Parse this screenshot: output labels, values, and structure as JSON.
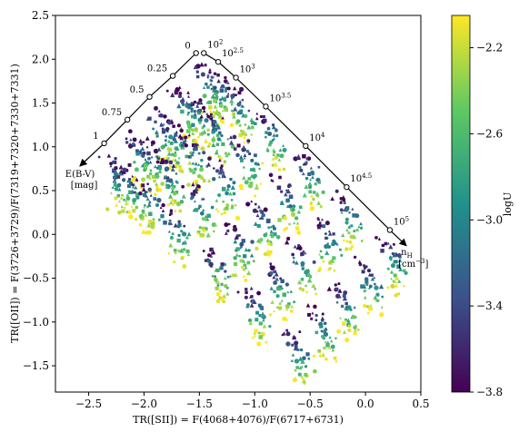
{
  "chart_data": {
    "type": "scatter",
    "title": "",
    "xlabel": "TR([SII]) = F(4068+4076)/F(6717+6731)",
    "ylabel": "TR([OII]) = F(3726+3729)/F(7319+7320+7330+7331)",
    "xlim": [
      -2.8,
      0.5
    ],
    "ylim": [
      -1.8,
      2.5
    ],
    "xticks": [
      "−2.5",
      "−2.0",
      "−1.5",
      "−1.0",
      "−0.5",
      "0.0",
      "0.5"
    ],
    "xtick_values": [
      -2.5,
      -2.0,
      -1.5,
      -1.0,
      -0.5,
      0.0,
      0.5
    ],
    "yticks": [
      "−1.5",
      "−1.0",
      "−0.5",
      "0.0",
      "0.5",
      "1.0",
      "1.5",
      "2.0",
      "2.5"
    ],
    "ytick_values": [
      -1.5,
      -1.0,
      -0.5,
      0.0,
      0.5,
      1.0,
      1.5,
      2.0,
      2.5
    ],
    "grid": false,
    "colorbar": {
      "label": "logU",
      "range": [
        -3.8,
        -2.05
      ],
      "ticks": [
        "−2.2",
        "−2.6",
        "−3.0",
        "−3.4",
        "−3.8"
      ],
      "tick_values": [
        -2.2,
        -2.6,
        -3.0,
        -3.4,
        -3.8
      ],
      "colormap": "viridis",
      "colors": [
        "#440154",
        "#3b528b",
        "#21918c",
        "#5ec962",
        "#fde725"
      ]
    },
    "reddening_vector": {
      "label": "E(B-V)",
      "unit": "[mag]",
      "points": [
        {
          "label": "0",
          "x": -1.53,
          "y": 2.07
        },
        {
          "label": "0.25",
          "x": -1.74,
          "y": 1.81
        },
        {
          "label": "0.5",
          "x": -1.95,
          "y": 1.57
        },
        {
          "label": "0.75",
          "x": -2.15,
          "y": 1.31
        },
        {
          "label": "1",
          "x": -2.36,
          "y": 1.04
        }
      ],
      "arrow_end": {
        "x": -2.58,
        "y": 0.78
      }
    },
    "density_vector": {
      "label": "n",
      "label_sub": "H",
      "unit": "[cm",
      "unit_sup": "−3",
      "unit_end": "]",
      "points": [
        {
          "base": "10",
          "exp": "2",
          "x": -1.46,
          "y": 2.07
        },
        {
          "base": "10",
          "exp": "2.5",
          "x": -1.33,
          "y": 1.97
        },
        {
          "base": "10",
          "exp": "3",
          "x": -1.17,
          "y": 1.79
        },
        {
          "base": "10",
          "exp": "3.5",
          "x": -0.9,
          "y": 1.46
        },
        {
          "base": "10",
          "exp": "4",
          "x": -0.54,
          "y": 1.01
        },
        {
          "base": "10",
          "exp": "4.5",
          "x": -0.17,
          "y": 0.54
        },
        {
          "base": "10",
          "exp": "5",
          "x": 0.22,
          "y": 0.05
        }
      ],
      "arrow_end": {
        "x": 0.37,
        "y": -0.13
      }
    },
    "model_sequences": [
      {
        "density": "10^2",
        "x0": -1.53,
        "y0": 1.94
      },
      {
        "density": "10^2.5",
        "x0": -1.41,
        "y0": 1.86
      },
      {
        "density": "10^3",
        "x0": -1.25,
        "y0": 1.67
      },
      {
        "density": "10^3.5",
        "x0": -0.98,
        "y0": 1.35
      },
      {
        "density": "10^4",
        "x0": -0.62,
        "y0": 0.91
      },
      {
        "density": "10^4.5",
        "x0": -0.27,
        "y0": 0.45
      },
      {
        "density": "10^5",
        "x0": 0.12,
        "y0": -0.04
      }
    ],
    "series": [
      {
        "marker": "circle"
      },
      {
        "marker": "triangle"
      },
      {
        "marker": "square"
      }
    ]
  }
}
